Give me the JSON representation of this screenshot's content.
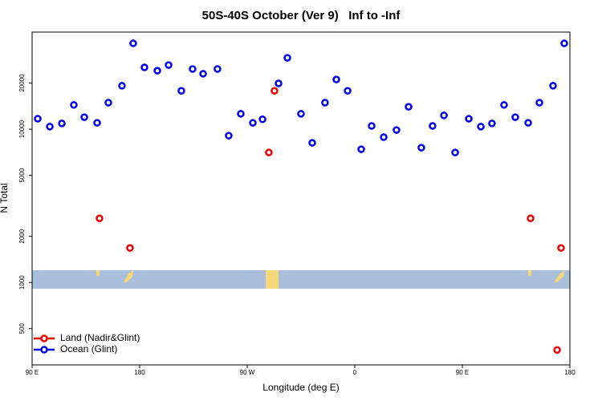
{
  "chart_data": {
    "type": "scatter",
    "title": "50S-40S October (Ver 9)   Inf to -Inf",
    "x_label": "Longitude (deg E)",
    "y_label": "N Total",
    "xlim": [
      90,
      540
    ],
    "xticks": [
      {
        "value": 90,
        "label": "90 E"
      },
      {
        "value": 180,
        "label": "180"
      },
      {
        "value": 270,
        "label": "90 W"
      },
      {
        "value": 360,
        "label": "0"
      },
      {
        "value": 450,
        "label": "90 E"
      },
      {
        "value": 540,
        "label": "180"
      }
    ],
    "ylim": [
      290,
      43000
    ],
    "yticks": [
      500,
      1000,
      2000,
      5000,
      10000,
      20000
    ],
    "log_y": true,
    "legend": "bottom-left",
    "series": [
      {
        "name": "Land (Nadir&Glint)",
        "color": "#ee0000",
        "x": [
          146.4,
          171.9,
          288.1,
          292.8,
          507.1,
          529.3,
          532.6
        ],
        "values": [
          2620,
          1680,
          7050,
          17800,
          2620,
          363,
          1680
        ]
      },
      {
        "name": "Ocean (Glint)",
        "color": "#0000ee",
        "x": [
          94.7,
          104.8,
          114.9,
          124.9,
          133.7,
          144.4,
          153.8,
          165.2,
          174.6,
          184,
          194.8,
          204.2,
          214.9,
          224.3,
          233.1,
          245.1,
          254.5,
          264.6,
          274.7,
          282.8,
          296.2,
          303.6,
          315,
          324.4,
          335.1,
          344.6,
          354,
          365.4,
          374.1,
          384.2,
          394.9,
          405,
          415.7,
          425.1,
          434.6,
          444,
          455.4,
          465.5,
          474.8,
          484.9,
          494.3,
          505.1,
          514.5,
          525.9,
          535.3
        ],
        "values": [
          11700,
          10400,
          10900,
          14400,
          11980,
          11000,
          14900,
          19200,
          36300,
          25300,
          24100,
          26200,
          17800,
          24700,
          23000,
          24700,
          9080,
          12600,
          11000,
          11600,
          19900,
          29200,
          12600,
          8150,
          14900,
          21100,
          17800,
          7400,
          10500,
          8870,
          9880,
          14000,
          7580,
          10500,
          12300,
          7050,
          11700,
          10400,
          10900,
          14400,
          11980,
          11000,
          14900,
          19200,
          36300
        ]
      }
    ]
  }
}
